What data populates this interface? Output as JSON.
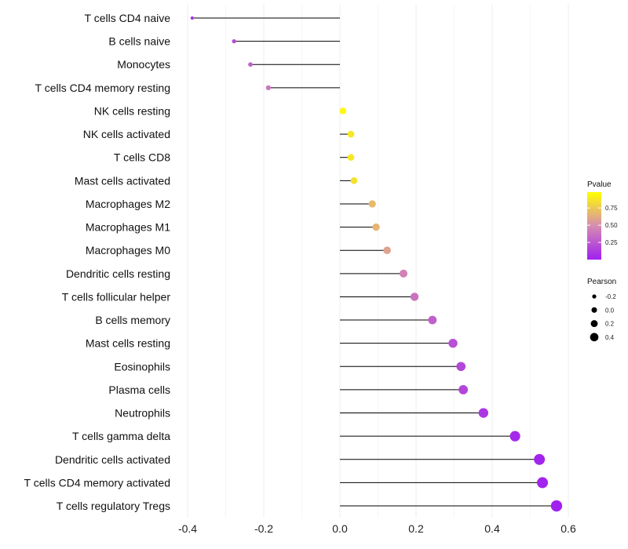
{
  "chart_data": {
    "type": "lollipop",
    "title": "",
    "xlabel": "",
    "ylabel": "",
    "xlim": [
      -0.42,
      0.62
    ],
    "xticks": [
      "-0.4",
      "-0.2",
      "0.0",
      "0.2",
      "0.4",
      "0.6"
    ],
    "xtick_values": [
      -0.4,
      -0.2,
      0.0,
      0.2,
      0.4,
      0.6
    ],
    "categories": [
      "T cells CD4 naive",
      "B cells naive",
      "Monocytes",
      "T cells CD4 memory resting",
      "NK cells resting",
      "NK cells activated",
      "T cells CD8",
      "Mast cells activated",
      "Macrophages M2",
      "Macrophages M1",
      "Macrophages M0",
      "Dendritic cells resting",
      "T cells follicular helper",
      "B cells memory",
      "Mast cells resting",
      "Eosinophils",
      "Plasma cells",
      "Neutrophils",
      "T cells gamma delta",
      "Dendritic cells activated",
      "T cells CD4 memory activated",
      "T cells regulatory  Tregs"
    ],
    "pearson": [
      -0.388,
      -0.278,
      -0.235,
      -0.188,
      0.008,
      0.029,
      0.029,
      0.037,
      0.085,
      0.095,
      0.124,
      0.167,
      0.196,
      0.243,
      0.297,
      0.318,
      0.324,
      0.377,
      0.46,
      0.524,
      0.532,
      0.569
    ],
    "pvalue": [
      0.07,
      0.2,
      0.3,
      0.4,
      0.97,
      0.9,
      0.9,
      0.87,
      0.7,
      0.68,
      0.6,
      0.45,
      0.38,
      0.3,
      0.22,
      0.18,
      0.17,
      0.1,
      0.04,
      0.02,
      0.02,
      0.01
    ],
    "legend": {
      "color_title": "Pvalue",
      "color_ticks": [
        "0.75",
        "0.50",
        "0.25"
      ],
      "color_tick_values": [
        0.75,
        0.5,
        0.25
      ],
      "colors": {
        "low": "#a020f0",
        "mid": "#d68cb0",
        "high": "#ffff00"
      },
      "size_title": "Pearson",
      "size_ticks": [
        "-0.2",
        "0.0",
        "0.2",
        "0.4"
      ],
      "size_tick_values": [
        -0.2,
        0.0,
        0.2,
        0.4
      ],
      "placement": "right"
    }
  }
}
